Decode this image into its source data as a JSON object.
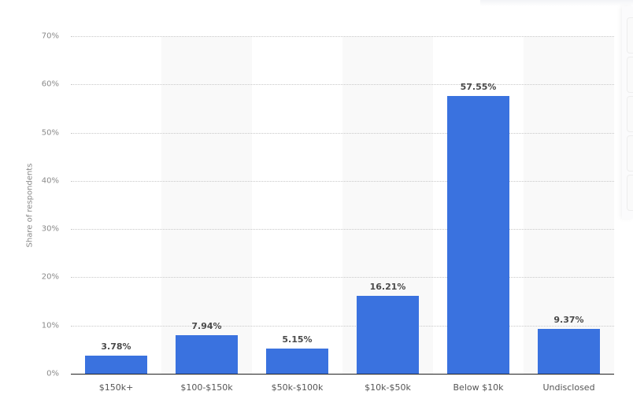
{
  "chart_data": {
    "type": "bar",
    "title": "",
    "xlabel": "",
    "ylabel": "Share of respondents",
    "ylim": [
      0,
      70
    ],
    "yticks": [
      "0%",
      "10%",
      "20%",
      "30%",
      "40%",
      "50%",
      "60%",
      "70%"
    ],
    "grid": true,
    "legend": null,
    "categories": [
      "$150k+",
      "$100-$150k",
      "$50k-$100k",
      "$10k-$50k",
      "Below $10k",
      "Undisclosed"
    ],
    "values": [
      3.78,
      7.94,
      5.15,
      16.21,
      57.55,
      9.37
    ],
    "value_labels": [
      "3.78%",
      "7.94%",
      "5.15%",
      "16.21%",
      "57.55%",
      "9.37%"
    ],
    "bar_color": "#3a72df"
  },
  "side_panel": {
    "buttons": 5
  }
}
